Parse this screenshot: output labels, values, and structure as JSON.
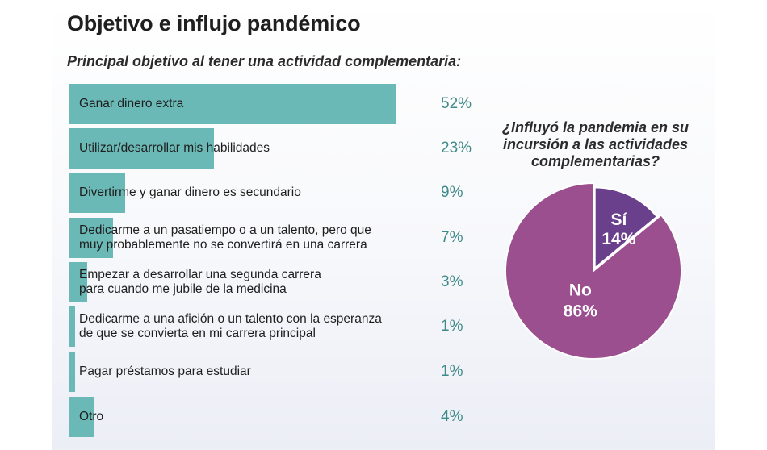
{
  "title": "Objetivo e influjo pandémico",
  "bar_subtitle": "Principal objetivo al tener una actividad complementaria:",
  "pie_question": "¿Influyó la pandemia en su incursión a las actividades complementarias?",
  "colors": {
    "bar": "#6bb9b7",
    "value_text": "#3f8a88",
    "pie_no": "#9b4f8f",
    "pie_si": "#6a3f8c"
  },
  "chart_data": [
    {
      "type": "bar",
      "orientation": "horizontal",
      "title": "Principal objetivo al tener una actividad complementaria:",
      "categories": [
        "Ganar dinero extra",
        "Utilizar/desarrollar mis habilidades",
        "Divertirme y ganar dinero es secundario",
        "Dedicarme a un pasatiempo o a un talento, pero que\nmuy probablemente no se convertirá en una carrera",
        "Empezar a desarrollar una segunda carrera\npara cuando me jubile de la medicina",
        "Dedicarme a una afición o un talento con la esperanza\nde que se convierta en mi carrera principal",
        "Pagar préstamos para estudiar",
        "Otro"
      ],
      "values": [
        52,
        23,
        9,
        7,
        3,
        1,
        1,
        4
      ],
      "value_labels": [
        "52%",
        "23%",
        "9%",
        "7%",
        "3%",
        "1%",
        "1%",
        "4%"
      ],
      "unit": "%",
      "xlim": [
        0,
        52
      ]
    },
    {
      "type": "pie",
      "title": "¿Influyó la pandemia en su incursión a las actividades complementarias?",
      "categories": [
        "Sí",
        "No"
      ],
      "values": [
        14,
        86
      ],
      "value_labels": [
        "14%",
        "86%"
      ],
      "unit": "%"
    }
  ]
}
